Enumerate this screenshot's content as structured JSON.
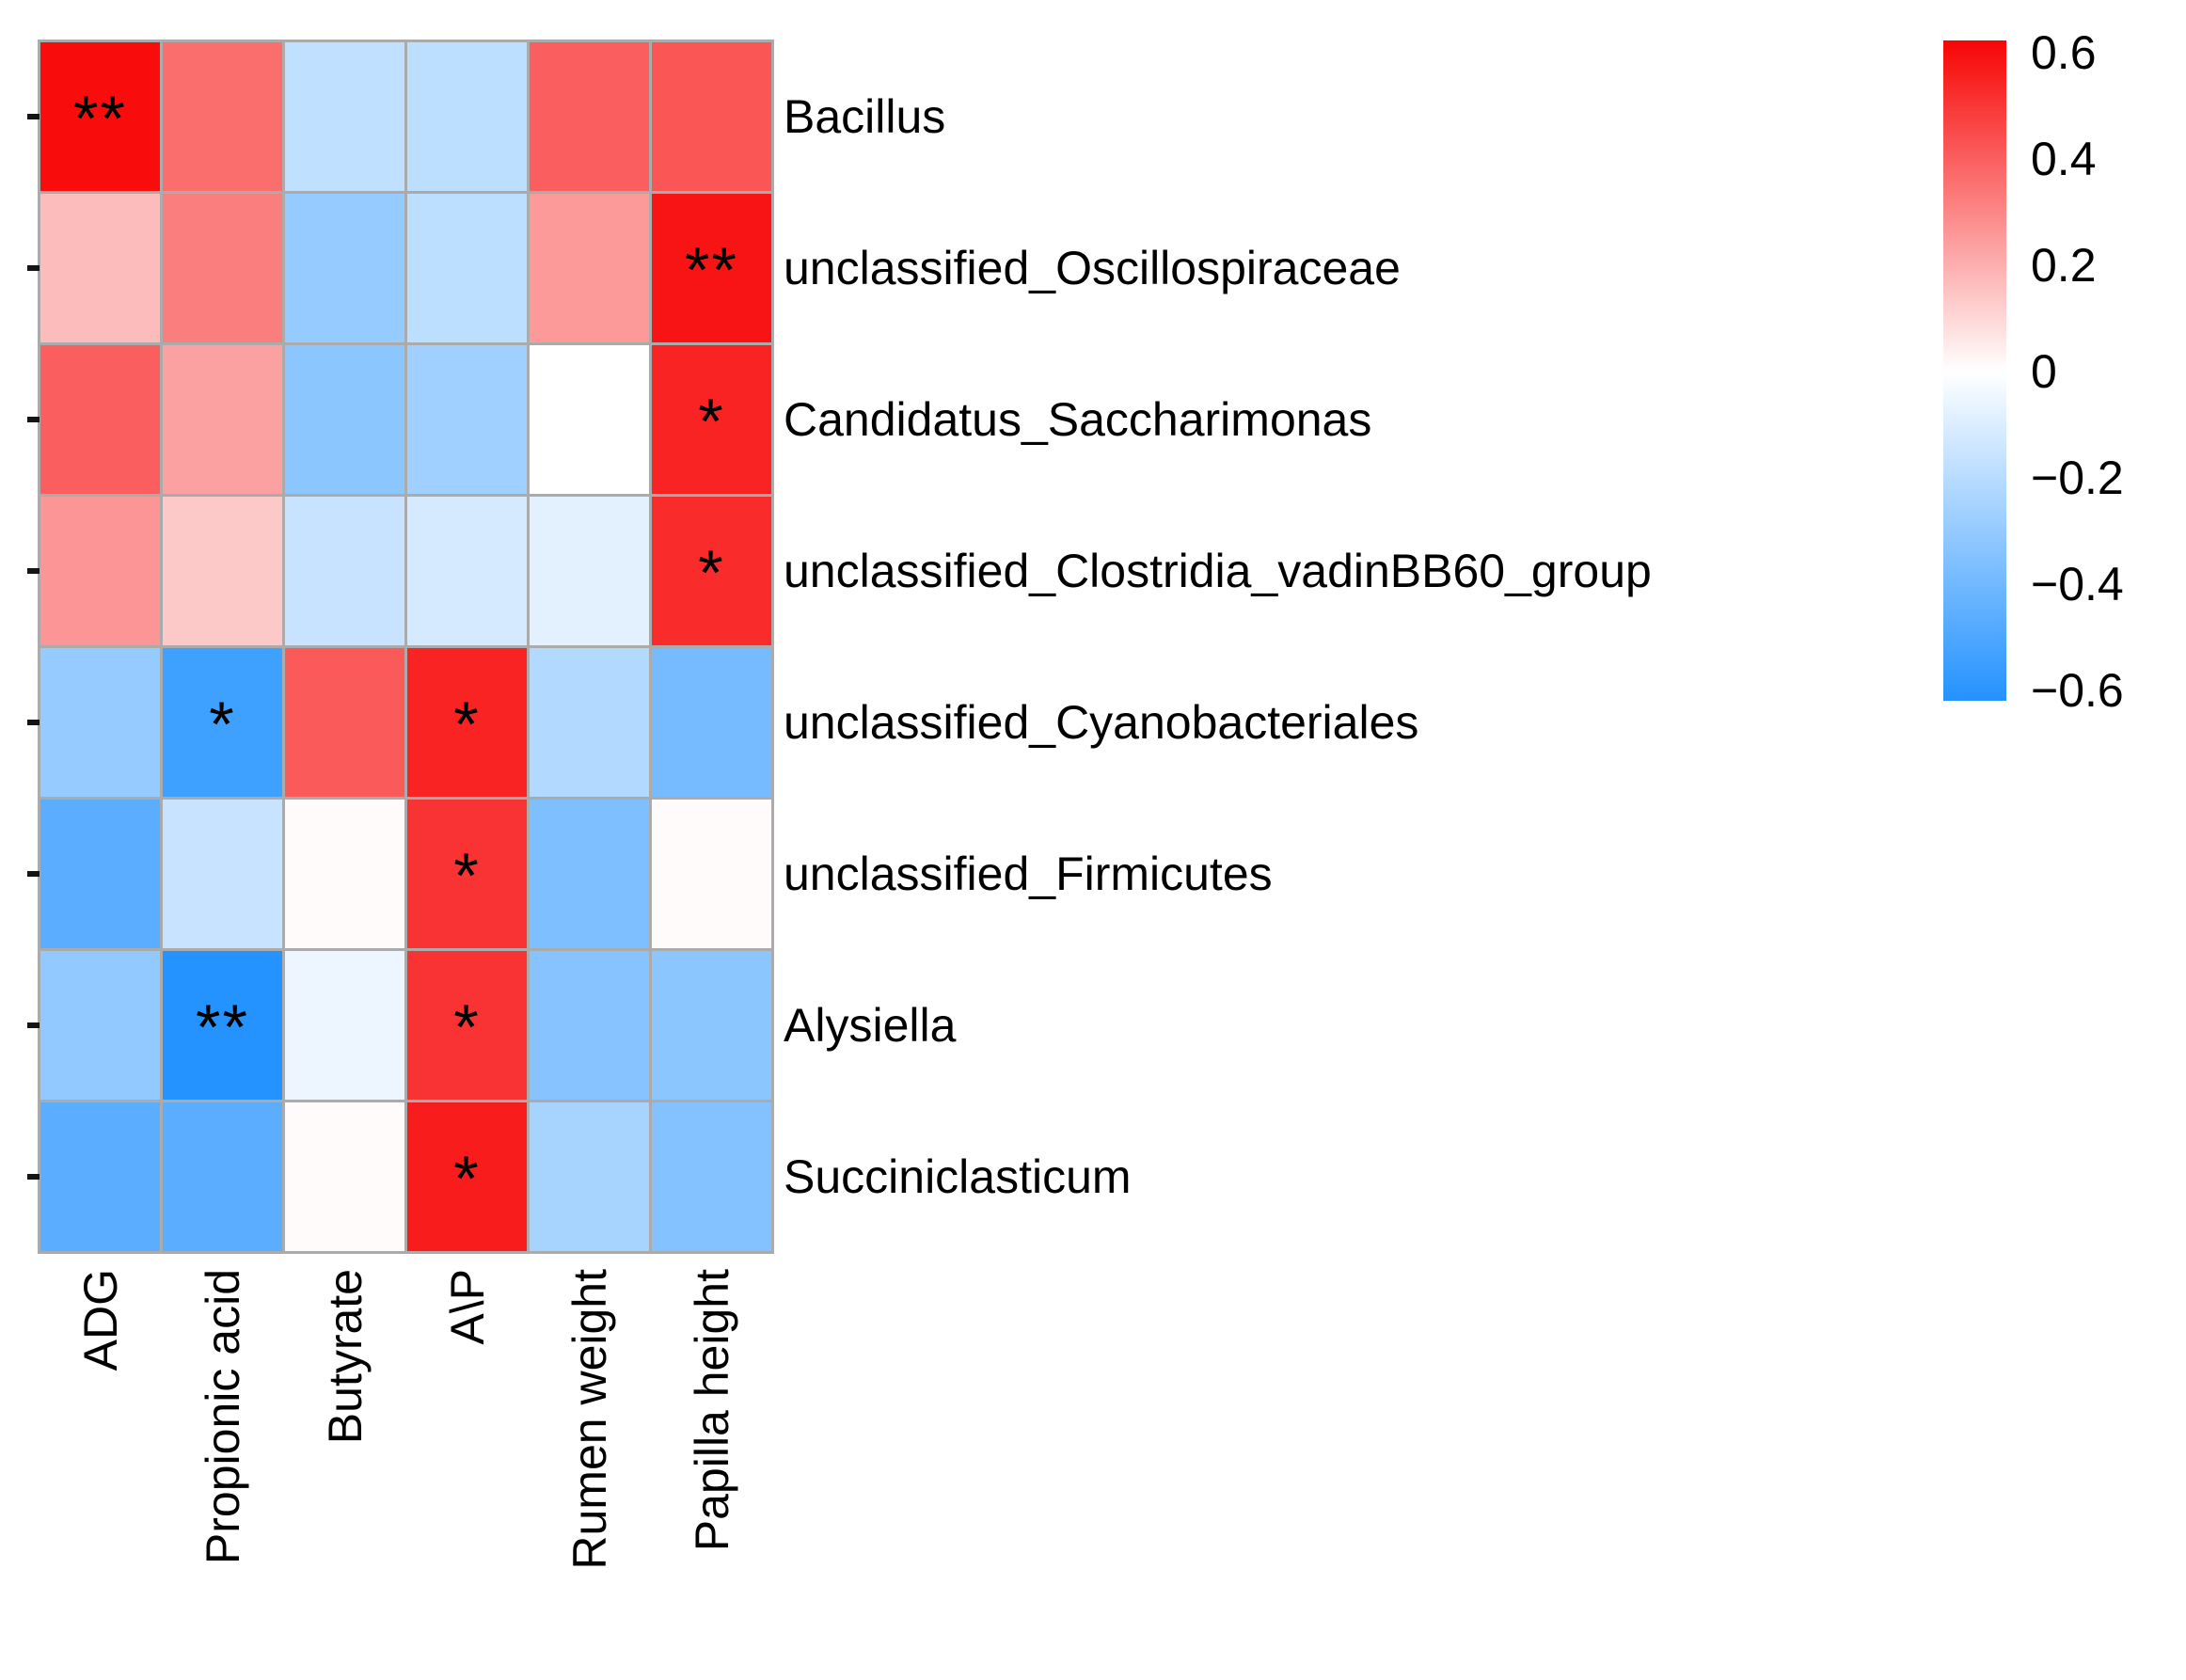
{
  "figure": {
    "background_color": "#FFFFFF",
    "text_color": "#000000"
  },
  "chart_data": {
    "type": "heatmap",
    "title": "",
    "xlabel": "",
    "ylabel": "",
    "columns": [
      "ADG",
      "Propionic acid",
      "Butyrate",
      "A\\P",
      "Rumen weight",
      "Papilla height"
    ],
    "rows": [
      "Bacillus",
      "unclassified_Oscillospiraceae",
      "Candidatus_Saccharimonas",
      "unclassified_Clostridia_vadinBB60_group",
      "unclassified_Cyanobacteriales",
      "unclassified_Firmicutes",
      "Alysiella",
      "Succiniclasticum"
    ],
    "values": [
      [
        0.62,
        0.37,
        -0.18,
        -0.19,
        0.41,
        0.43
      ],
      [
        0.17,
        0.33,
        -0.3,
        -0.19,
        0.26,
        0.6
      ],
      [
        0.41,
        0.24,
        -0.33,
        -0.27,
        0.0,
        0.56
      ],
      [
        0.27,
        0.14,
        -0.16,
        -0.12,
        -0.08,
        0.54
      ],
      [
        -0.3,
        -0.55,
        0.42,
        0.56,
        -0.22,
        -0.39
      ],
      [
        -0.47,
        -0.16,
        0.01,
        0.52,
        -0.37,
        0.01
      ],
      [
        -0.31,
        -0.62,
        -0.05,
        0.52,
        -0.34,
        -0.33
      ],
      [
        -0.47,
        -0.47,
        0.01,
        0.58,
        -0.25,
        -0.35
      ]
    ],
    "significance": [
      [
        "**",
        "",
        "",
        "",
        "",
        ""
      ],
      [
        "",
        "",
        "",
        "",
        "",
        "**"
      ],
      [
        "",
        "",
        "",
        "",
        "",
        "*"
      ],
      [
        "",
        "",
        "",
        "",
        "",
        "*"
      ],
      [
        "",
        "*",
        "",
        "*",
        "",
        ""
      ],
      [
        "",
        "",
        "",
        "*",
        "",
        ""
      ],
      [
        "",
        "**",
        "",
        "*",
        "",
        ""
      ],
      [
        "",
        "",
        "",
        "*",
        "",
        ""
      ]
    ],
    "grid_line_color": "#ABABAB",
    "legend_position": "right",
    "colorbar": {
      "ticks": [
        "0.6",
        "0.4",
        "0.2",
        "0",
        "−0.2",
        "−0.4",
        "−0.6"
      ],
      "range": [
        -0.62,
        0.62
      ],
      "vmax": 0.64,
      "positive_color": "#F80404",
      "negative_color": "#1E90FF",
      "neutral_color": "#FFFFFF",
      "gradient_top": "#F80505",
      "gradient_bottom": "#2492FF",
      "white_stop_percent": 50.1
    }
  }
}
